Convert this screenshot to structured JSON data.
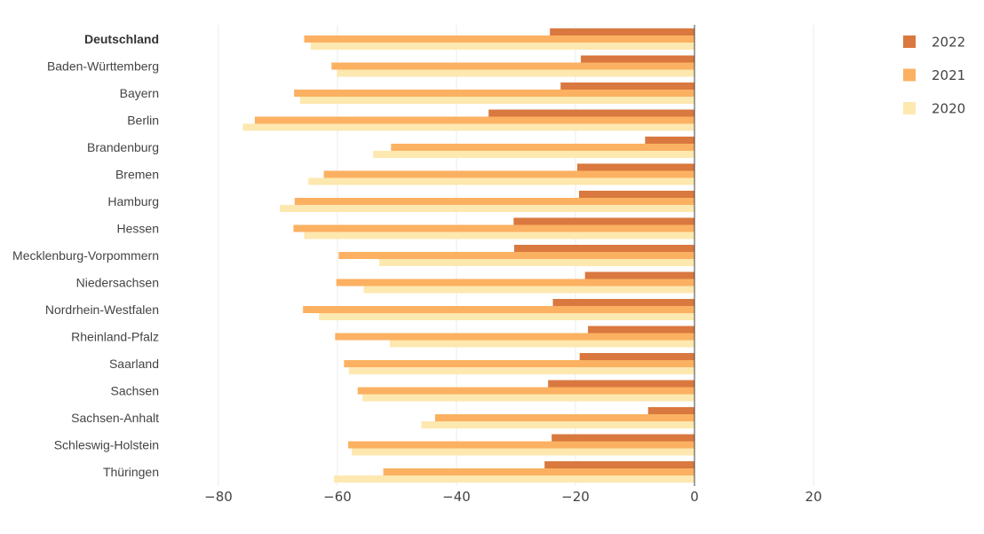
{
  "chart_data": {
    "type": "bar",
    "orientation": "horizontal",
    "title": "",
    "xlabel": "",
    "ylabel": "",
    "xlim": [
      -90,
      30
    ],
    "xticks": [
      -80,
      -60,
      -40,
      -20,
      0,
      20
    ],
    "xtick_labels": [
      "−80",
      "−60",
      "−40",
      "−20",
      "0",
      "20"
    ],
    "grid": true,
    "legend_position": "top-right",
    "categories": [
      "Deutschland",
      "Baden-Württemberg",
      "Bayern",
      "Berlin",
      "Brandenburg",
      "Bremen",
      "Hamburg",
      "Hessen",
      "Mecklenburg-Vorpommern",
      "Niedersachsen",
      "Nordrhein-Westfalen",
      "Rheinland-Pfalz",
      "Saarland",
      "Sachsen",
      "Sachsen-Anhalt",
      "Schleswig-Holstein",
      "Thüringen"
    ],
    "bold_categories": [
      "Deutschland"
    ],
    "series": [
      {
        "name": "2022",
        "color": "#d9783f",
        "values": [
          -24.3,
          -19.1,
          -22.5,
          -34.6,
          -8.3,
          -19.7,
          -19.4,
          -30.4,
          -30.3,
          -18.4,
          -23.8,
          -17.9,
          -19.3,
          -24.6,
          -7.8,
          -24.0,
          -25.2
        ]
      },
      {
        "name": "2021",
        "color": "#fbb161",
        "values": [
          -65.6,
          -61.0,
          -67.3,
          -73.9,
          -51.0,
          -62.3,
          -67.2,
          -67.4,
          -59.8,
          -60.2,
          -65.8,
          -60.4,
          -58.9,
          -56.6,
          -43.6,
          -58.2,
          -52.3
        ]
      },
      {
        "name": "2020",
        "color": "#fde8b0",
        "values": [
          -64.5,
          -60.1,
          -66.3,
          -75.9,
          -54.0,
          -64.9,
          -69.7,
          -65.6,
          -53.0,
          -55.6,
          -63.1,
          -51.2,
          -58.1,
          -55.8,
          -45.9,
          -57.6,
          -60.6
        ]
      }
    ]
  }
}
